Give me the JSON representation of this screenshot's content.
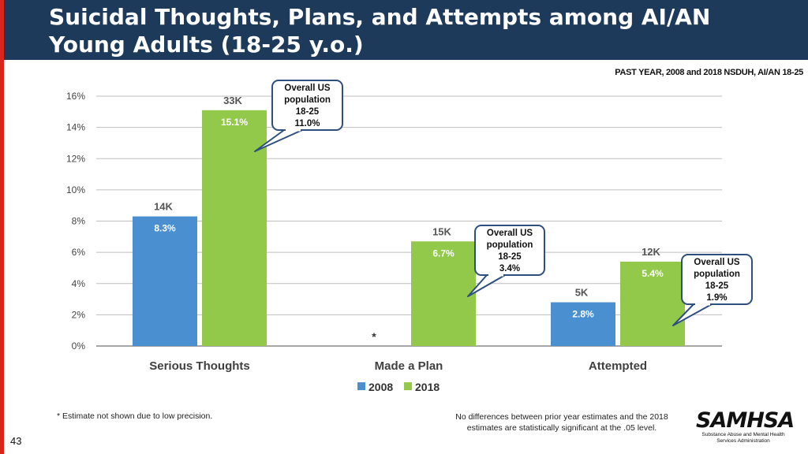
{
  "title": "Suicidal Thoughts, Plans, and Attempts among AI/AN Young Adults (18-25 y.o.)",
  "source": "PAST YEAR, 2008 and 2018 NSDUH, AI/AN 18-25",
  "page_number": "43",
  "footnote_left": "* Estimate not shown due to low precision.",
  "footnote_right": "No differences between prior year estimates and the 2018 estimates are statistically significant at the .05 level.",
  "logo": {
    "word": "SAMHSA",
    "subtitle": "Substance Abuse and Mental Health Services Administration"
  },
  "colors": {
    "title_bg": "#1e3a5a",
    "accent_red": "#d9261c",
    "series_2008": "#4a8fd0",
    "series_2018": "#92c94a",
    "callout_border": "#2f4f7f"
  },
  "chart_data": {
    "type": "bar",
    "categories": [
      "Serious Thoughts",
      "Made a Plan",
      "Attempted"
    ],
    "series": [
      {
        "name": "2008",
        "values": [
          8.3,
          null,
          2.8
        ],
        "labels": [
          "8.3%",
          "",
          "2.8%"
        ],
        "counts": [
          "14K",
          "",
          "5K"
        ],
        "color": "#4a8fd0"
      },
      {
        "name": "2018",
        "values": [
          15.1,
          6.7,
          5.4
        ],
        "labels": [
          "15.1%",
          "6.7%",
          "5.4%"
        ],
        "counts": [
          "33K",
          "15K",
          "12K"
        ],
        "color": "#92c94a"
      }
    ],
    "missing_marker": "*",
    "ylim": [
      0,
      16
    ],
    "yticks": [
      "0%",
      "2%",
      "4%",
      "6%",
      "8%",
      "10%",
      "12%",
      "14%",
      "16%"
    ],
    "grid": true,
    "legend": "bottom",
    "annotations": [
      {
        "category": "Serious Thoughts",
        "lines": [
          "Overall US",
          "population",
          "18-25",
          "11.0%"
        ]
      },
      {
        "category": "Made a Plan",
        "lines": [
          "Overall US",
          "population",
          "18-25",
          "3.4%"
        ]
      },
      {
        "category": "Attempted",
        "lines": [
          "Overall US",
          "population",
          "18-25",
          "1.9%"
        ]
      }
    ]
  }
}
